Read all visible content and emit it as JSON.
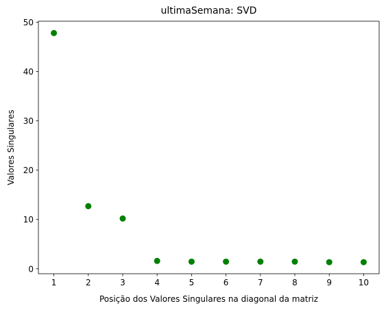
{
  "chart_data": {
    "type": "scatter",
    "title": "ultimaSemana: SVD",
    "xlabel": "Posição dos Valores Singulares na diagonal da matriz",
    "ylabel": "Valores Singulares",
    "x": [
      1,
      2,
      3,
      4,
      5,
      6,
      7,
      8,
      9,
      10
    ],
    "y": [
      47.8,
      12.7,
      10.2,
      1.6,
      1.45,
      1.45,
      1.45,
      1.45,
      1.35,
      1.35
    ],
    "xticks": [
      "1",
      "2",
      "3",
      "4",
      "5",
      "6",
      "7",
      "8",
      "9",
      "10"
    ],
    "yticks": [
      "0",
      "10",
      "20",
      "30",
      "40",
      "50"
    ],
    "xlim": [
      0.55,
      10.45
    ],
    "ylim": [
      -1.0,
      50.2
    ],
    "grid": false,
    "marker_color": "#008000"
  }
}
